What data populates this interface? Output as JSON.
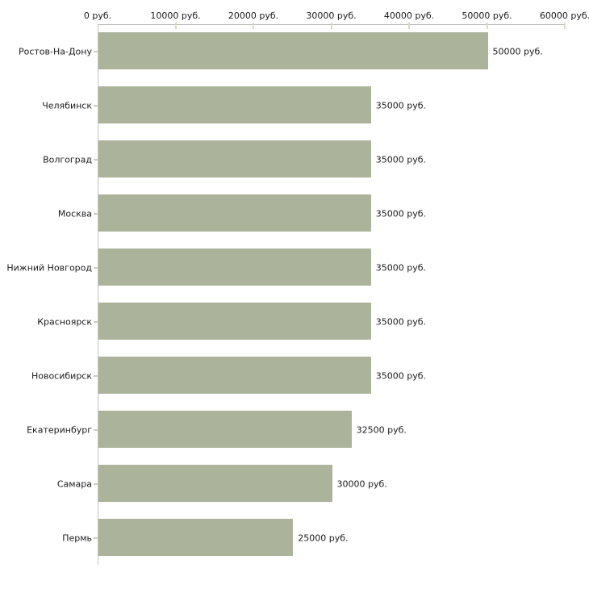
{
  "chart_data": {
    "type": "bar",
    "orientation": "horizontal",
    "title": "",
    "xlabel": "",
    "ylabel": "",
    "unit": "руб.",
    "xlim": [
      0,
      60000
    ],
    "x_ticks": [
      0,
      10000,
      20000,
      30000,
      40000,
      50000,
      60000
    ],
    "x_tick_labels": [
      "0 руб.",
      "10000 руб.",
      "20000 руб.",
      "30000 руб.",
      "40000 руб.",
      "50000 руб.",
      "60000 руб."
    ],
    "categories": [
      "Ростов-На-Дону",
      "Челябинск",
      "Волгоград",
      "Москва",
      "Нижний Новгород",
      "Красноярск",
      "Новосибирск",
      "Екатеринбург",
      "Самара",
      "Пермь"
    ],
    "values": [
      50000,
      35000,
      35000,
      35000,
      35000,
      35000,
      35000,
      32500,
      30000,
      25000
    ],
    "value_labels": [
      "50000 руб.",
      "35000 руб.",
      "35000 руб.",
      "35000 руб.",
      "35000 руб.",
      "35000 руб.",
      "35000 руб.",
      "32500 руб.",
      "30000 руб.",
      "25000 руб."
    ],
    "legend": false,
    "grid": false,
    "colors": {
      "bar": "#abb49b",
      "axis_line": "#b9bab5",
      "y_axis_line": "#c3c4bf",
      "tick": "#d9dcbe",
      "text": "#1b1b1b",
      "background": "#ffffff"
    }
  }
}
